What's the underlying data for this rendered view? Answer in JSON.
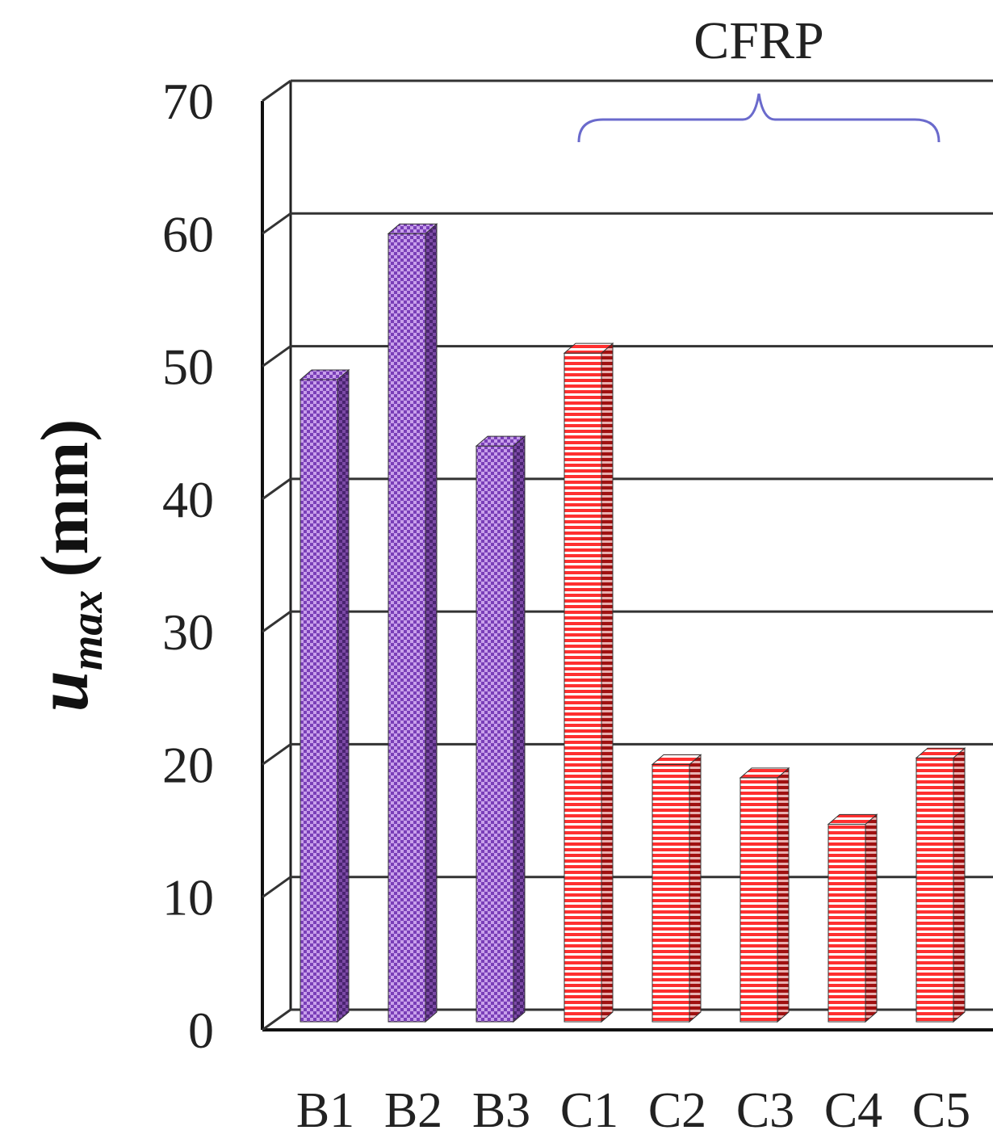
{
  "chart_data": {
    "type": "bar",
    "title": "",
    "xlabel": "",
    "ylabel": {
      "symbol": "u",
      "subscript": "max",
      "unit": "(mm)"
    },
    "ylim": [
      0,
      70
    ],
    "yticks": [
      "0",
      "10",
      "20",
      "30",
      "40",
      "50",
      "60",
      "70"
    ],
    "grid": true,
    "categories": [
      "B1",
      "B2",
      "B3",
      "C1",
      "C2",
      "C3",
      "C4",
      "C5"
    ],
    "values": [
      49.0,
      60.0,
      44.0,
      51.0,
      20.0,
      19.0,
      15.5,
      20.5
    ],
    "bar_groups": [
      "B",
      "B",
      "B",
      "C",
      "C",
      "C",
      "C",
      "C"
    ],
    "colors": {
      "B": "#9966cc",
      "C": "#ff2020",
      "grid": "#333333",
      "bracket": "#6a6acc"
    },
    "annotations": [
      {
        "text": "CFRP",
        "spans": [
          "C1",
          "C5"
        ]
      }
    ]
  }
}
